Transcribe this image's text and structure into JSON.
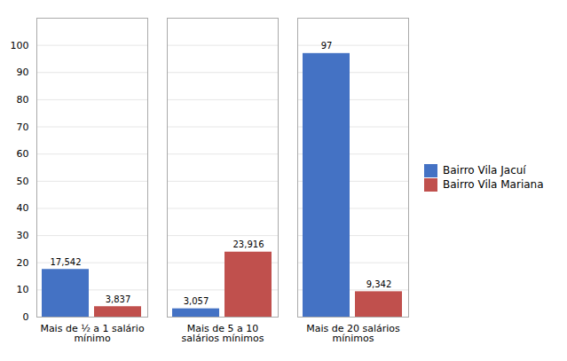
{
  "chart_data": {
    "type": "bar",
    "categories": [
      "Mais de ½ a 1 salário\nmínimo",
      "Mais de 5 a 10\nsalários mínimos",
      "Mais de 20 salários\nmínimos"
    ],
    "series": [
      {
        "name": "Bairro Vila Jacuí",
        "color": "#4472C4",
        "values": [
          17.542,
          3.057,
          97
        ],
        "value_labels": [
          "17,542",
          "3,057",
          "97"
        ]
      },
      {
        "name": "Bairro Vila Mariana",
        "color": "#C0504D",
        "values": [
          3.837,
          23.916,
          9.342
        ],
        "value_labels": [
          "3,837",
          "23,916",
          "9,342"
        ]
      }
    ],
    "ylim": [
      0,
      110
    ],
    "yticks": [
      0,
      10,
      20,
      30,
      40,
      50,
      60,
      70,
      80,
      90,
      100
    ],
    "grid": true,
    "legend": "right",
    "data_labels": true
  }
}
